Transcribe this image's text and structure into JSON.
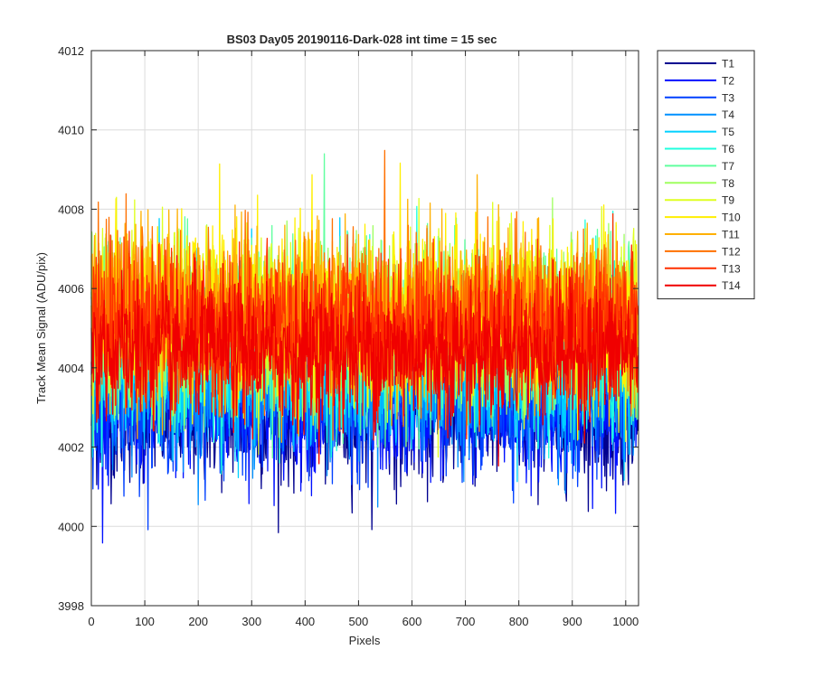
{
  "chart_data": {
    "type": "line",
    "title": "BS03 Day05 20190116-Dark-028 int time = 15 sec",
    "xlabel": "Pixels",
    "ylabel": "Track Mean Signal (ADU/pix)",
    "xlim": [
      0,
      1024
    ],
    "ylim": [
      3998,
      4012
    ],
    "xticks": [
      0,
      100,
      200,
      300,
      400,
      500,
      600,
      700,
      800,
      900,
      1000
    ],
    "yticks": [
      3998,
      4000,
      4002,
      4004,
      4006,
      4008,
      4010,
      4012
    ],
    "grid": true,
    "legend_position": "outside-right",
    "n_points": 1024,
    "series": [
      {
        "name": "T1",
        "color": "#00008f",
        "mean": 4002.8,
        "noise": 0.85
      },
      {
        "name": "T2",
        "color": "#0010ff",
        "mean": 4003.0,
        "noise": 0.85
      },
      {
        "name": "T3",
        "color": "#0040ff",
        "mean": 4003.3,
        "noise": 0.9
      },
      {
        "name": "T4",
        "color": "#0090ff",
        "mean": 4003.7,
        "noise": 0.95
      },
      {
        "name": "T5",
        "color": "#00d0ff",
        "mean": 4004.2,
        "noise": 1.0
      },
      {
        "name": "T6",
        "color": "#20ffdf",
        "mean": 4004.6,
        "noise": 1.05
      },
      {
        "name": "T7",
        "color": "#60ff9f",
        "mean": 4004.9,
        "noise": 1.05
      },
      {
        "name": "T8",
        "color": "#9fff60",
        "mean": 4005.1,
        "noise": 1.05
      },
      {
        "name": "T9",
        "color": "#dfff20",
        "mean": 4005.3,
        "noise": 1.05
      },
      {
        "name": "T10",
        "color": "#ffef00",
        "mean": 4005.4,
        "noise": 1.05
      },
      {
        "name": "T11",
        "color": "#ffb000",
        "mean": 4005.4,
        "noise": 1.05
      },
      {
        "name": "T12",
        "color": "#ff7000",
        "mean": 4005.2,
        "noise": 1.0
      },
      {
        "name": "T13",
        "color": "#ff3000",
        "mean": 4005.0,
        "noise": 0.95
      },
      {
        "name": "T14",
        "color": "#f00000",
        "mean": 4004.4,
        "noise": 0.85
      }
    ]
  }
}
